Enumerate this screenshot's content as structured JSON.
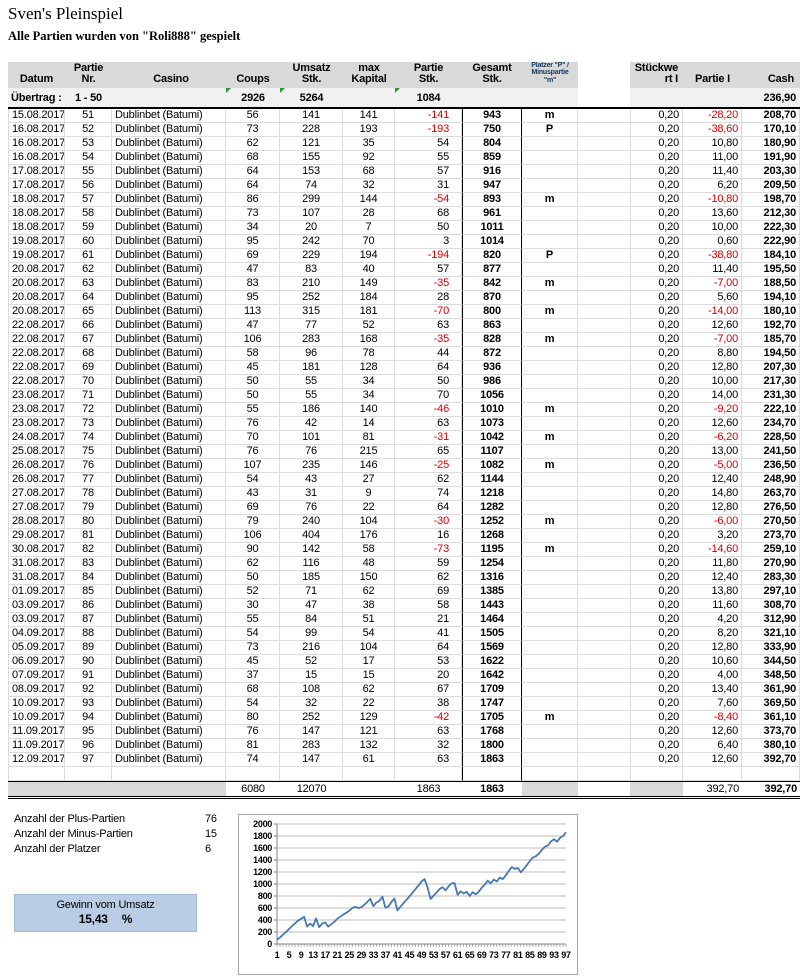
{
  "title": "Sven's Pleinspiel",
  "subtitle": "Alle Partien wurden von \"Roli888\" gespielt",
  "table": {
    "headers": {
      "datum": "Datum",
      "nr": "Partie\nNr.",
      "casino": "Casino",
      "coups": "Coups",
      "umsatz": "Umsatz\nStk.",
      "kapital": "max\nKapital",
      "partie": "Partie\nStk.",
      "gesamt": "Gesamt\nStk.",
      "platzer": "Platzer \"P\" /\nMinuspartie\n\"m\"",
      "stueckwert": "Stückwe\nrt I",
      "partie_i": "Partie I",
      "cash": "Cash"
    },
    "uebertrag": {
      "label": "Übertrag :",
      "range": "1 - 50",
      "coups": "2926",
      "umsatz": "5264",
      "partie": "1084",
      "cash": "236,90"
    },
    "rows": [
      [
        "15.08.2017",
        "51",
        "Dublinbet (Batumi)",
        "56",
        "141",
        "141",
        "-141",
        "943",
        "m",
        "0,20",
        "-28,20",
        "208,70"
      ],
      [
        "16.08.2017",
        "52",
        "Dublinbet (Batumi)",
        "73",
        "228",
        "193",
        "-193",
        "750",
        "P",
        "0,20",
        "-38,60",
        "170,10"
      ],
      [
        "16.08.2017",
        "53",
        "Dublinbet (Batumi)",
        "62",
        "121",
        "35",
        "54",
        "804",
        "",
        "0,20",
        "10,80",
        "180,90"
      ],
      [
        "16.08.2017",
        "54",
        "Dublinbet (Batumi)",
        "68",
        "155",
        "92",
        "55",
        "859",
        "",
        "0,20",
        "11,00",
        "191,90"
      ],
      [
        "17.08.2017",
        "55",
        "Dublinbet (Batumi)",
        "64",
        "153",
        "68",
        "57",
        "916",
        "",
        "0,20",
        "11,40",
        "203,30"
      ],
      [
        "17.08.2017",
        "56",
        "Dublinbet (Batumi)",
        "64",
        "74",
        "32",
        "31",
        "947",
        "",
        "0,20",
        "6,20",
        "209,50"
      ],
      [
        "18.08.2017",
        "57",
        "Dublinbet (Batumi)",
        "86",
        "299",
        "144",
        "-54",
        "893",
        "m",
        "0,20",
        "-10,80",
        "198,70"
      ],
      [
        "18.08.2017",
        "58",
        "Dublinbet (Batumi)",
        "73",
        "107",
        "28",
        "68",
        "961",
        "",
        "0,20",
        "13,60",
        "212,30"
      ],
      [
        "18.08.2017",
        "59",
        "Dublinbet (Batumi)",
        "34",
        "20",
        "7",
        "50",
        "1011",
        "",
        "0,20",
        "10,00",
        "222,30"
      ],
      [
        "19.08.2017",
        "60",
        "Dublinbet (Batumi)",
        "95",
        "242",
        "70",
        "3",
        "1014",
        "",
        "0,20",
        "0,60",
        "222,90"
      ],
      [
        "19.08.2017",
        "61",
        "Dublinbet (Batumi)",
        "69",
        "229",
        "194",
        "-194",
        "820",
        "P",
        "0,20",
        "-38,80",
        "184,10"
      ],
      [
        "20.08.2017",
        "62",
        "Dublinbet (Batumi)",
        "47",
        "83",
        "40",
        "57",
        "877",
        "",
        "0,20",
        "11,40",
        "195,50"
      ],
      [
        "20.08.2017",
        "63",
        "Dublinbet (Batumi)",
        "83",
        "210",
        "149",
        "-35",
        "842",
        "m",
        "0,20",
        "-7,00",
        "188,50"
      ],
      [
        "20.08.2017",
        "64",
        "Dublinbet (Batumi)",
        "95",
        "252",
        "184",
        "28",
        "870",
        "",
        "0,20",
        "5,60",
        "194,10"
      ],
      [
        "20.08.2017",
        "65",
        "Dublinbet (Batumi)",
        "113",
        "315",
        "181",
        "-70",
        "800",
        "m",
        "0,20",
        "-14,00",
        "180,10"
      ],
      [
        "22.08.2017",
        "66",
        "Dublinbet (Batumi)",
        "47",
        "77",
        "52",
        "63",
        "863",
        "",
        "0,20",
        "12,60",
        "192,70"
      ],
      [
        "22.08.2017",
        "67",
        "Dublinbet (Batumi)",
        "106",
        "283",
        "168",
        "-35",
        "828",
        "m",
        "0,20",
        "-7,00",
        "185,70"
      ],
      [
        "22.08.2017",
        "68",
        "Dublinbet (Batumi)",
        "58",
        "96",
        "78",
        "44",
        "872",
        "",
        "0,20",
        "8,80",
        "194,50"
      ],
      [
        "22.08.2017",
        "69",
        "Dublinbet (Batumi)",
        "45",
        "181",
        "128",
        "64",
        "936",
        "",
        "0,20",
        "12,80",
        "207,30"
      ],
      [
        "22.08.2017",
        "70",
        "Dublinbet (Batumi)",
        "50",
        "55",
        "34",
        "50",
        "986",
        "",
        "0,20",
        "10,00",
        "217,30"
      ],
      [
        "23.08.2017",
        "71",
        "Dublinbet (Batumi)",
        "50",
        "55",
        "34",
        "70",
        "1056",
        "",
        "0,20",
        "14,00",
        "231,30"
      ],
      [
        "23.08.2017",
        "72",
        "Dublinbet (Batumi)",
        "55",
        "186",
        "140",
        "-46",
        "1010",
        "m",
        "0,20",
        "-9,20",
        "222,10"
      ],
      [
        "23.08.2017",
        "73",
        "Dublinbet (Batumi)",
        "76",
        "42",
        "14",
        "63",
        "1073",
        "",
        "0,20",
        "12,60",
        "234,70"
      ],
      [
        "24.08.2017",
        "74",
        "Dublinbet (Batumi)",
        "70",
        "101",
        "81",
        "-31",
        "1042",
        "m",
        "0,20",
        "-6,20",
        "228,50"
      ],
      [
        "25.08.2017",
        "75",
        "Dublinbet (Batumi)",
        "76",
        "76",
        "215",
        "65",
        "1107",
        "",
        "0,20",
        "13,00",
        "241,50"
      ],
      [
        "26.08.2017",
        "76",
        "Dublinbet (Batumi)",
        "107",
        "235",
        "146",
        "-25",
        "1082",
        "m",
        "0,20",
        "-5,00",
        "236,50"
      ],
      [
        "26.08.2017",
        "77",
        "Dublinbet (Batumi)",
        "54",
        "43",
        "27",
        "62",
        "1144",
        "",
        "0,20",
        "12,40",
        "248,90"
      ],
      [
        "27.08.2017",
        "78",
        "Dublinbet (Batumi)",
        "43",
        "31",
        "9",
        "74",
        "1218",
        "",
        "0,20",
        "14,80",
        "263,70"
      ],
      [
        "27.08.2017",
        "79",
        "Dublinbet (Batumi)",
        "69",
        "76",
        "22",
        "64",
        "1282",
        "",
        "0,20",
        "12,80",
        "276,50"
      ],
      [
        "28.08.2017",
        "80",
        "Dublinbet (Batumi)",
        "79",
        "240",
        "104",
        "-30",
        "1252",
        "m",
        "0,20",
        "-6,00",
        "270,50"
      ],
      [
        "29.08.2017",
        "81",
        "Dublinbet (Batumi)",
        "106",
        "404",
        "176",
        "16",
        "1268",
        "",
        "0,20",
        "3,20",
        "273,70"
      ],
      [
        "30.08.2017",
        "82",
        "Dublinbet (Batumi)",
        "90",
        "142",
        "58",
        "-73",
        "1195",
        "m",
        "0,20",
        "-14,60",
        "259,10"
      ],
      [
        "31.08.2017",
        "83",
        "Dublinbet (Batumi)",
        "62",
        "116",
        "48",
        "59",
        "1254",
        "",
        "0,20",
        "11,80",
        "270,90"
      ],
      [
        "31.08.2017",
        "84",
        "Dublinbet (Batumi)",
        "50",
        "185",
        "150",
        "62",
        "1316",
        "",
        "0,20",
        "12,40",
        "283,30"
      ],
      [
        "01.09.2017",
        "85",
        "Dublinbet (Batumi)",
        "52",
        "71",
        "62",
        "69",
        "1385",
        "",
        "0,20",
        "13,80",
        "297,10"
      ],
      [
        "03.09.2017",
        "86",
        "Dublinbet (Batumi)",
        "30",
        "47",
        "38",
        "58",
        "1443",
        "",
        "0,20",
        "11,60",
        "308,70"
      ],
      [
        "03.09.2017",
        "87",
        "Dublinbet (Batumi)",
        "55",
        "84",
        "51",
        "21",
        "1464",
        "",
        "0,20",
        "4,20",
        "312,90"
      ],
      [
        "04.09.2017",
        "88",
        "Dublinbet (Batumi)",
        "54",
        "99",
        "54",
        "41",
        "1505",
        "",
        "0,20",
        "8,20",
        "321,10"
      ],
      [
        "05.09.2017",
        "89",
        "Dublinbet (Batumi)",
        "73",
        "216",
        "104",
        "64",
        "1569",
        "",
        "0,20",
        "12,80",
        "333,90"
      ],
      [
        "06.09.2017",
        "90",
        "Dublinbet (Batumi)",
        "45",
        "52",
        "17",
        "53",
        "1622",
        "",
        "0,20",
        "10,60",
        "344,50"
      ],
      [
        "07.09.2017",
        "91",
        "Dublinbet (Batumi)",
        "37",
        "15",
        "15",
        "20",
        "1642",
        "",
        "0,20",
        "4,00",
        "348,50"
      ],
      [
        "08.09.2017",
        "92",
        "Dublinbet (Batumi)",
        "68",
        "108",
        "62",
        "67",
        "1709",
        "",
        "0,20",
        "13,40",
        "361,90"
      ],
      [
        "10.09.2017",
        "93",
        "Dublinbet (Batumi)",
        "54",
        "32",
        "22",
        "38",
        "1747",
        "",
        "0,20",
        "7,60",
        "369,50"
      ],
      [
        "10.09.2017",
        "94",
        "Dublinbet (Batumi)",
        "80",
        "252",
        "129",
        "-42",
        "1705",
        "m",
        "0,20",
        "-8,40",
        "361,10"
      ],
      [
        "11.09.2017",
        "95",
        "Dublinbet (Batumi)",
        "76",
        "147",
        "121",
        "63",
        "1768",
        "",
        "0,20",
        "12,60",
        "373,70"
      ],
      [
        "11.09.2017",
        "96",
        "Dublinbet (Batumi)",
        "81",
        "283",
        "132",
        "32",
        "1800",
        "",
        "0,20",
        "6,40",
        "380,10"
      ],
      [
        "12.09.2017",
        "97",
        "Dublinbet (Batumi)",
        "74",
        "147",
        "61",
        "63",
        "1863",
        "",
        "0,20",
        "12,60",
        "392,70"
      ]
    ],
    "totals": {
      "coups": "6080",
      "umsatz": "12070",
      "partie": "1863",
      "gesamt": "1863",
      "partie_i": "392,70",
      "cash": "392,70"
    }
  },
  "summary": {
    "plus_label": "Anzahl der Plus-Partien",
    "plus_value": "76",
    "minus_label": "Anzahl der Minus-Partien",
    "minus_value": "15",
    "platzer_label": "Anzahl der Platzer",
    "platzer_value": "6",
    "gewinn_label": "Gewinn vom Umsatz",
    "gewinn_value": "15,43",
    "gewinn_unit": "%"
  },
  "chart_data": {
    "type": "line",
    "title": "",
    "xlabel": "",
    "ylabel": "",
    "ylim": [
      0,
      2000
    ],
    "y_tick_step": 200,
    "grid": true,
    "legend": false,
    "line_color": "#4878b3",
    "x_labels": [
      1,
      5,
      9,
      13,
      17,
      21,
      25,
      29,
      33,
      37,
      41,
      45,
      49,
      53,
      57,
      61,
      65,
      69,
      73,
      77,
      81,
      85,
      89,
      93,
      97
    ],
    "values": [
      70,
      110,
      155,
      200,
      250,
      300,
      345,
      390,
      420,
      455,
      290,
      340,
      300,
      425,
      280,
      340,
      360,
      290,
      330,
      365,
      420,
      455,
      490,
      520,
      555,
      600,
      620,
      598,
      612,
      655,
      700,
      755,
      630,
      690,
      720,
      790,
      605,
      625,
      700,
      760,
      560,
      620,
      680,
      735,
      795,
      855,
      915,
      975,
      1040,
      1084,
      943,
      750,
      804,
      859,
      916,
      947,
      893,
      961,
      1011,
      1014,
      820,
      877,
      842,
      870,
      800,
      863,
      828,
      872,
      936,
      986,
      1056,
      1010,
      1073,
      1042,
      1107,
      1082,
      1144,
      1218,
      1282,
      1252,
      1268,
      1195,
      1254,
      1316,
      1385,
      1443,
      1464,
      1505,
      1569,
      1622,
      1642,
      1709,
      1747,
      1705,
      1768,
      1800,
      1863
    ]
  }
}
